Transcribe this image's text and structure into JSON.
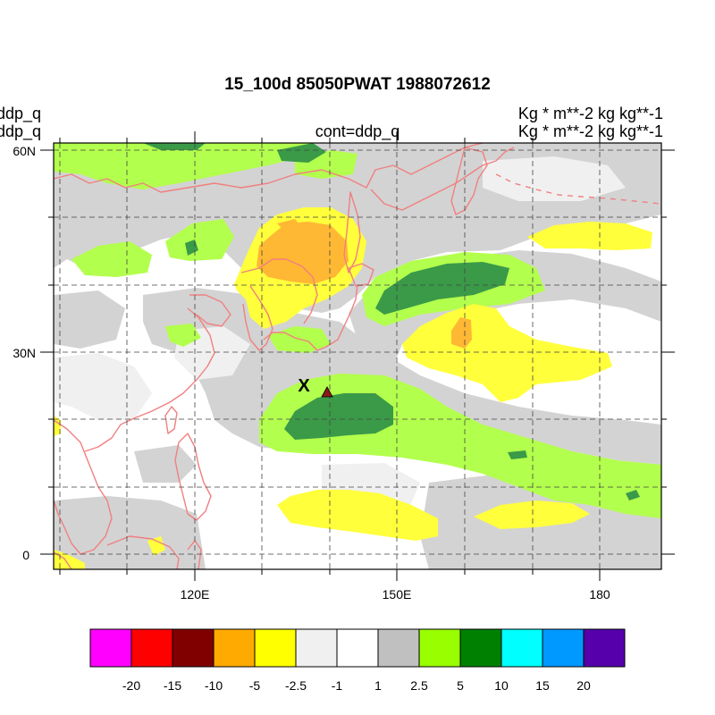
{
  "plot": {
    "title": "15_100d 85050PWAT  1988072612",
    "left_line1": "ddp_q",
    "left_line2": "ddp_q",
    "center_label": "cont=ddp_q",
    "right_line1": "Kg  * m**-2 kg kg**-1",
    "right_line2": "Kg  * m**-2 kg kg**-1"
  },
  "axes": {
    "lat_ticks": [
      {
        "label": "60N",
        "value": 60
      },
      {
        "label": "30N",
        "value": 30
      },
      {
        "label": "0",
        "value": 0
      }
    ],
    "lon_ticks": [
      {
        "label": "120E",
        "value": 120
      },
      {
        "label": "150E",
        "value": 150
      },
      {
        "label": "180",
        "value": 180
      }
    ],
    "lon_range": [
      100,
      190
    ],
    "lat_range": [
      -2,
      61
    ]
  },
  "markers": {
    "x_marker_label": "X",
    "triangle_color": "#8b1a1a"
  },
  "colorbar": {
    "colors": [
      "#ff00ff",
      "#ff0000",
      "#800000",
      "#ffaa00",
      "#ffff00",
      "#f0f0f0",
      "#ffffff",
      "#c0c0c0",
      "#99ff00",
      "#008000",
      "#00ffff",
      "#0099ff",
      "#5500aa"
    ],
    "labels": [
      "-20",
      "-15",
      "-10",
      "-5",
      "-2.5",
      "-1",
      "1",
      "2.5",
      "5",
      "10",
      "15",
      "20"
    ]
  },
  "colors": {
    "coastline": "#f08080",
    "gray_shade": "#d3d3d3",
    "light_shade": "#f0f0f0",
    "lightgreen": "#b3ff4d",
    "darkgreen": "#3a9a48",
    "yellow": "#ffff3c",
    "orange": "#ffb833"
  }
}
